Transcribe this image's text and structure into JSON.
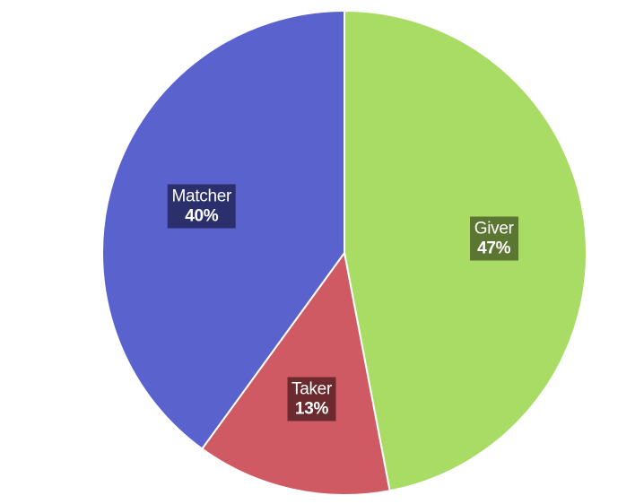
{
  "chart_data": {
    "type": "pie",
    "title": "",
    "start_angle_deg": 0,
    "direction": "clockwise",
    "slices": [
      {
        "name": "Giver",
        "value": 47,
        "label": "47%",
        "color": "#a8dc64",
        "label_bg": "#5b7532"
      },
      {
        "name": "Taker",
        "value": 13,
        "label": "13%",
        "color": "#d05a63",
        "label_bg": "#6b2a2e"
      },
      {
        "name": "Matcher",
        "value": 40,
        "label": "40%",
        "color": "#5a63cd",
        "label_bg": "#2b2f6b"
      }
    ]
  }
}
